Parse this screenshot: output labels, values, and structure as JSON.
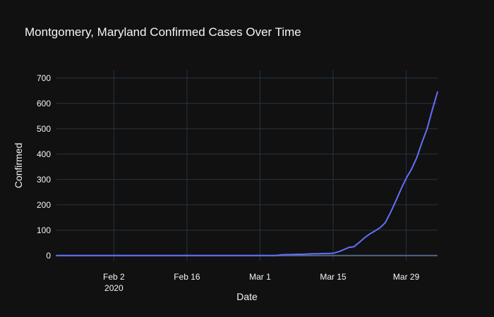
{
  "chart_data": {
    "type": "line",
    "title": "Montgomery, Maryland Confirmed Cases Over Time",
    "xlabel": "Date",
    "ylabel": "Confirmed",
    "xlim": [
      "2020-01-22",
      "2020-04-04"
    ],
    "ylim": [
      -20,
      730
    ],
    "grid": true,
    "x_ticks": [
      {
        "date": "2020-02-02",
        "label": "Feb 2",
        "sublabel": "2020"
      },
      {
        "date": "2020-02-16",
        "label": "Feb 16"
      },
      {
        "date": "2020-03-01",
        "label": "Mar 1"
      },
      {
        "date": "2020-03-15",
        "label": "Mar 15"
      },
      {
        "date": "2020-03-29",
        "label": "Mar 29"
      }
    ],
    "y_ticks": [
      0,
      100,
      200,
      300,
      400,
      500,
      600,
      700
    ],
    "series": [
      {
        "color": "#636efa",
        "x": [
          "2020-01-22",
          "2020-03-04",
          "2020-03-05",
          "2020-03-06",
          "2020-03-07",
          "2020-03-08",
          "2020-03-09",
          "2020-03-10",
          "2020-03-11",
          "2020-03-12",
          "2020-03-13",
          "2020-03-14",
          "2020-03-15",
          "2020-03-16",
          "2020-03-17",
          "2020-03-18",
          "2020-03-19",
          "2020-03-20",
          "2020-03-21",
          "2020-03-22",
          "2020-03-23",
          "2020-03-24",
          "2020-03-25",
          "2020-03-26",
          "2020-03-27",
          "2020-03-28",
          "2020-03-29",
          "2020-03-30",
          "2020-03-31",
          "2020-04-01",
          "2020-04-02",
          "2020-04-03",
          "2020-04-04"
        ],
        "y": [
          0,
          0,
          3,
          4,
          4,
          5,
          5,
          6,
          7,
          7,
          8,
          8,
          9,
          15,
          23,
          32,
          35,
          52,
          70,
          85,
          97,
          110,
          130,
          170,
          215,
          262,
          305,
          340,
          385,
          445,
          500,
          575,
          645
        ]
      }
    ]
  }
}
